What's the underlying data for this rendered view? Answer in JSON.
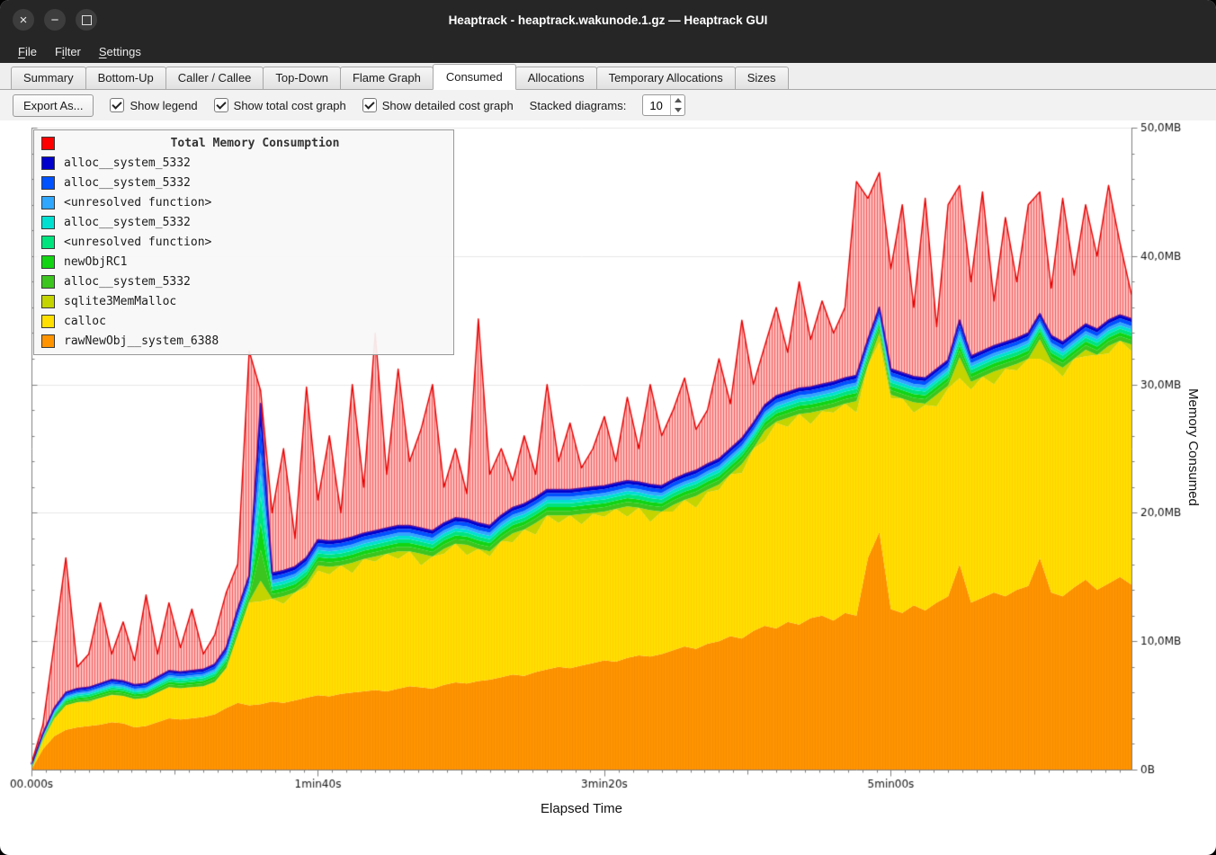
{
  "titlebar": {
    "title": "Heaptrack - heaptrack.wakunode.1.gz — Heaptrack GUI",
    "close_glyph": "×",
    "minimize_glyph": "−"
  },
  "menu": {
    "items": [
      {
        "label": "File",
        "mnemonic": 0
      },
      {
        "label": "Filter",
        "mnemonic": 1
      },
      {
        "label": "Settings",
        "mnemonic": 0
      }
    ]
  },
  "tabs": {
    "active": "Consumed",
    "items": [
      "Summary",
      "Bottom-Up",
      "Caller / Callee",
      "Top-Down",
      "Flame Graph",
      "Consumed",
      "Allocations",
      "Temporary Allocations",
      "Sizes"
    ]
  },
  "toolbar": {
    "export_label": "Export As...",
    "checkboxes": [
      {
        "label": "Show legend",
        "checked": true
      },
      {
        "label": "Show total cost graph",
        "checked": true
      },
      {
        "label": "Show detailed cost graph",
        "checked": true
      }
    ],
    "stacked_label": "Stacked diagrams:",
    "stacked_value": "10"
  },
  "chart_data": {
    "type": "area",
    "title": "Total Memory Consumption",
    "xlabel": "Elapsed Time",
    "ylabel": "Memory Consumed",
    "x_range": [
      0,
      384
    ],
    "y_range": [
      0,
      50
    ],
    "x_ticks": [
      {
        "t": 0,
        "label": "00.000s"
      },
      {
        "t": 100,
        "label": "1min40s"
      },
      {
        "t": 200,
        "label": "3min20s"
      },
      {
        "t": 300,
        "label": "5min00s"
      }
    ],
    "x_minor_step": 5,
    "y_ticks": [
      {
        "v": 0,
        "label": "0B"
      },
      {
        "v": 10,
        "label": "10,0MB"
      },
      {
        "v": 20,
        "label": "20,0MB"
      },
      {
        "v": 30,
        "label": "30,0MB"
      },
      {
        "v": 40,
        "label": "40,0MB"
      },
      {
        "v": 50,
        "label": "50,0MB"
      }
    ],
    "y_minor_step": 2,
    "legend": [
      {
        "label": "Total Memory Consumption",
        "color": "#ff0000"
      },
      {
        "label": "alloc__system_5332",
        "color": "#0000cd"
      },
      {
        "label": "alloc__system_5332",
        "color": "#0051ff"
      },
      {
        "label": "<unresolved function>",
        "color": "#2fa7ff"
      },
      {
        "label": "alloc__system_5332",
        "color": "#00e0d1"
      },
      {
        "label": "<unresolved function>",
        "color": "#00e47d"
      },
      {
        "label": "newObjRC1",
        "color": "#12d412"
      },
      {
        "label": "alloc__system_5332",
        "color": "#3bc51e"
      },
      {
        "label": "sqlite3MemMalloc",
        "color": "#c3d400"
      },
      {
        "label": "calloc",
        "color": "#ffdf00"
      },
      {
        "label": "rawNewObj__system_6388",
        "color": "#ff9400"
      }
    ],
    "x_start": 0,
    "x_step": 4,
    "series_tops": {
      "total": [
        0.5,
        3.5,
        9.9,
        16.5,
        8.0,
        9.0,
        13.0,
        9.0,
        11.5,
        8.5,
        13.6,
        9.0,
        13.0,
        9.5,
        12.5,
        9.0,
        10.5,
        13.8,
        16.0,
        32.6,
        29.5,
        20.0,
        25.0,
        18.0,
        29.8,
        21.0,
        26.0,
        20.0,
        30.0,
        22.0,
        34.0,
        23.0,
        31.2,
        24.0,
        26.5,
        30.0,
        22.0,
        25.0,
        21.5,
        35.1,
        23.0,
        25.0,
        22.5,
        26.0,
        23.0,
        30.0,
        24.0,
        27.0,
        23.5,
        25.0,
        27.5,
        24.0,
        29.0,
        25.0,
        30.0,
        26.0,
        28.0,
        30.5,
        26.5,
        28.0,
        32.0,
        28.5,
        35.0,
        30.0,
        33.0,
        36.0,
        32.5,
        38.0,
        33.5,
        36.5,
        34.0,
        36.0,
        45.8,
        44.5,
        46.5,
        39.0,
        44.0,
        36.0,
        44.5,
        34.5,
        44.0,
        45.5,
        38.0,
        45.0,
        36.5,
        43.0,
        38.0,
        44.0,
        45.0,
        37.5,
        44.5,
        38.5,
        44.0,
        40.0,
        45.5,
        41.0,
        37.0
      ],
      "blue_top": [
        0.4,
        2.8,
        4.8,
        6.0,
        6.3,
        6.4,
        6.7,
        7.0,
        6.9,
        6.6,
        6.7,
        7.2,
        7.7,
        7.6,
        7.7,
        7.8,
        8.2,
        9.5,
        12.5,
        15.1,
        28.5,
        15.3,
        15.5,
        15.8,
        16.5,
        17.9,
        17.8,
        17.9,
        18.1,
        18.4,
        18.6,
        18.8,
        19.0,
        19.0,
        18.8,
        18.6,
        19.2,
        19.6,
        19.5,
        19.2,
        19.0,
        19.8,
        20.4,
        20.7,
        21.2,
        21.8,
        21.8,
        21.8,
        21.9,
        22.0,
        22.1,
        22.3,
        22.5,
        22.4,
        22.2,
        22.1,
        22.6,
        23.0,
        23.3,
        23.8,
        24.2,
        25.0,
        25.8,
        27.0,
        28.4,
        29.1,
        29.4,
        29.7,
        29.8,
        30.0,
        30.2,
        30.5,
        30.7,
        33.5,
        36.0,
        31.2,
        30.9,
        30.6,
        30.5,
        31.2,
        31.9,
        35.0,
        32.2,
        32.6,
        33.0,
        33.3,
        33.6,
        34.0,
        35.5,
        33.8,
        33.3,
        34.0,
        34.7,
        34.3,
        35.0,
        35.4,
        35.1
      ],
      "calloc_top": [
        0.3,
        2.2,
        4.0,
        5.2,
        5.5,
        5.2,
        5.9,
        5.8,
        6.1,
        5.5,
        5.9,
        6.0,
        6.9,
        6.4,
        6.9,
        6.6,
        7.0,
        8.0,
        10.8,
        13.0,
        13.1,
        13.5,
        12.9,
        14.0,
        14.2,
        15.5,
        15.2,
        16.1,
        15.3,
        16.4,
        16.2,
        17.0,
        16.4,
        17.2,
        15.9,
        17.1,
        16.8,
        17.9,
        16.7,
        17.4,
        16.6,
        18.2,
        17.7,
        18.9,
        18.3,
        20.0,
        19.2,
        20.1,
        19.1,
        19.9,
        19.7,
        20.6,
        19.7,
        20.6,
        19.3,
        20.3,
        20.1,
        21.5,
        20.4,
        21.6,
        21.8,
        23.2,
        23.1,
        25.2,
        25.6,
        27.0,
        26.7,
        28.1,
        26.9,
        27.9,
        27.8,
        28.9,
        27.8,
        31.5,
        33.3,
        28.9,
        28.9,
        27.8,
        28.4,
        28.3,
        29.7,
        30.5,
        29.6,
        30.8,
        30.0,
        31.2,
        31.1,
        32.5,
        32.0,
        31.5,
        30.6,
        32.0,
        32.2,
        32.5,
        32.4,
        33.4,
        32.6
      ],
      "rawnewobj_top": [
        0.2,
        1.6,
        2.6,
        3.1,
        3.3,
        3.4,
        3.5,
        3.7,
        3.6,
        3.3,
        3.4,
        3.7,
        4.0,
        3.9,
        4.0,
        4.1,
        4.3,
        4.8,
        5.2,
        5.0,
        5.1,
        5.3,
        5.2,
        5.4,
        5.6,
        5.8,
        5.7,
        5.9,
        6.0,
        6.1,
        6.2,
        6.1,
        6.3,
        6.5,
        6.4,
        6.3,
        6.6,
        6.8,
        6.7,
        6.9,
        7.0,
        7.2,
        7.4,
        7.3,
        7.6,
        7.8,
        8.0,
        7.9,
        8.1,
        8.3,
        8.5,
        8.4,
        8.7,
        8.9,
        8.8,
        9.0,
        9.3,
        9.6,
        9.4,
        9.8,
        10.0,
        10.4,
        10.2,
        10.8,
        11.2,
        11.0,
        11.5,
        11.3,
        11.8,
        12.0,
        11.6,
        12.2,
        12.0,
        16.5,
        18.5,
        12.5,
        12.2,
        12.8,
        12.4,
        13.0,
        13.5,
        16.0,
        13.0,
        13.4,
        13.8,
        13.5,
        14.0,
        14.3,
        16.5,
        13.8,
        13.5,
        14.2,
        14.8,
        14.0,
        14.5,
        15.0,
        14.4
      ]
    },
    "thin_bands": [
      {
        "name": "alloc__system_5332",
        "color": "#3bc51e",
        "thickness": 0.35
      },
      {
        "name": "newObjRC1",
        "color": "#12d412",
        "thickness": 0.3
      },
      {
        "name": "<unresolved function>",
        "color": "#00e47d",
        "thickness": 0.3
      },
      {
        "name": "alloc__system_5332",
        "color": "#00e0d1",
        "thickness": 0.25
      },
      {
        "name": "<unresolved function>",
        "color": "#2fa7ff",
        "thickness": 0.25
      },
      {
        "name": "alloc__system_5332",
        "color": "#0051ff",
        "thickness": 0.3
      },
      {
        "name": "alloc__system_5332",
        "color": "#0000cd",
        "thickness": 0.25
      }
    ],
    "area_colors": {
      "rawnewobj": "#ff9400",
      "calloc": "#ffdf00",
      "sqlite": "#c3d400",
      "total_fill": "rgba(255,40,40,0.30)",
      "total_stroke": "#e80000",
      "blue_stroke": "#1515d8"
    }
  }
}
